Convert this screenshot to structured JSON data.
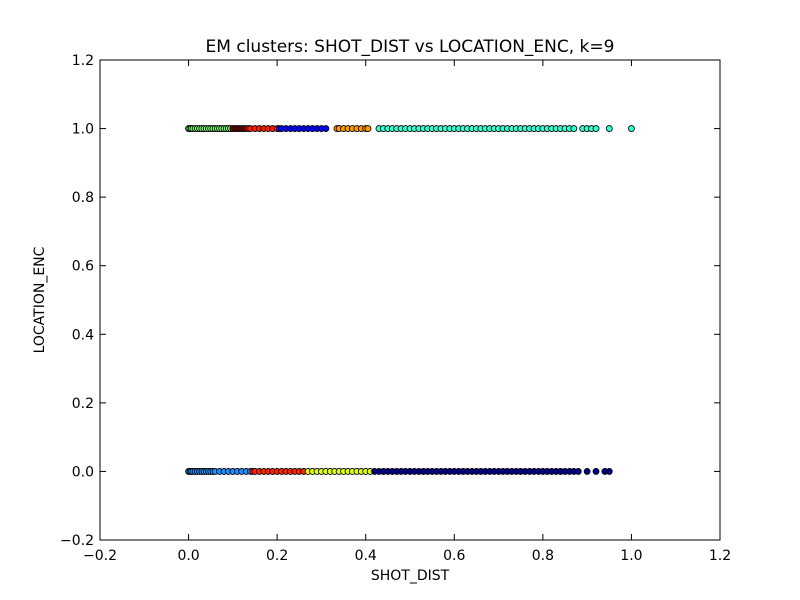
{
  "chart_data": {
    "type": "scatter",
    "title": "EM clusters: SHOT_DIST vs LOCATION_ENC, k=9",
    "xlabel": "SHOT_DIST",
    "ylabel": "LOCATION_ENC",
    "xlim": [
      -0.2,
      1.2
    ],
    "ylim": [
      -0.2,
      1.2
    ],
    "xticks": [
      "−0.2",
      "0.0",
      "0.2",
      "0.4",
      "0.6",
      "0.8",
      "1.0",
      "1.2"
    ],
    "yticks": [
      "−0.2",
      "0.0",
      "0.2",
      "0.4",
      "0.6",
      "0.8",
      "1.0",
      "1.2"
    ],
    "grid": false,
    "legend": "none",
    "marker_edge_color": "#000000",
    "series": [
      {
        "color": "#80ff77",
        "y": 1.0,
        "x": [
          0.0,
          0.003,
          0.006,
          0.01,
          0.015,
          0.02,
          0.025,
          0.03,
          0.035,
          0.04,
          0.045,
          0.05,
          0.055,
          0.06,
          0.065,
          0.07,
          0.075,
          0.08,
          0.085,
          0.09,
          0.095
        ]
      },
      {
        "color": "#800000",
        "y": 1.0,
        "x": [
          0.1,
          0.105,
          0.11,
          0.115,
          0.12,
          0.125,
          0.13
        ]
      },
      {
        "color": "#ff1a00",
        "y": 1.0,
        "x": [
          0.135,
          0.14,
          0.15,
          0.16,
          0.17,
          0.18,
          0.19,
          0.2
        ]
      },
      {
        "color": "#0000ff",
        "y": 1.0,
        "x": [
          0.205,
          0.21,
          0.22,
          0.23,
          0.24,
          0.25,
          0.26,
          0.27,
          0.28,
          0.29,
          0.3,
          0.31
        ]
      },
      {
        "color": "#ff9900",
        "y": 1.0,
        "x": [
          0.335,
          0.34,
          0.35,
          0.36,
          0.37,
          0.38,
          0.39,
          0.4,
          0.405
        ]
      },
      {
        "color": "#33ffd0",
        "y": 1.0,
        "x": [
          0.43,
          0.44,
          0.45,
          0.46,
          0.47,
          0.48,
          0.49,
          0.5,
          0.51,
          0.52,
          0.53,
          0.54,
          0.55,
          0.56,
          0.57,
          0.58,
          0.59,
          0.6,
          0.61,
          0.62,
          0.63,
          0.64,
          0.65,
          0.66,
          0.67,
          0.68,
          0.69,
          0.7,
          0.71,
          0.72,
          0.73,
          0.74,
          0.75,
          0.76,
          0.77,
          0.78,
          0.79,
          0.8,
          0.81,
          0.82,
          0.83,
          0.84,
          0.85,
          0.86,
          0.87,
          0.89,
          0.9,
          0.91,
          0.92,
          0.95,
          1.0
        ]
      },
      {
        "color": "#1e90ff",
        "y": 0.0,
        "x": [
          0.0,
          0.003,
          0.006,
          0.01,
          0.015,
          0.02,
          0.025,
          0.03,
          0.035,
          0.04,
          0.045,
          0.05,
          0.055,
          0.06,
          0.07,
          0.08,
          0.09,
          0.1,
          0.11,
          0.12,
          0.13,
          0.14
        ]
      },
      {
        "color": "#ff2200",
        "y": 0.0,
        "x": [
          0.145,
          0.15,
          0.16,
          0.17,
          0.18,
          0.19,
          0.2,
          0.21,
          0.22,
          0.23,
          0.24,
          0.25,
          0.26
        ]
      },
      {
        "color": "#e0ff1a",
        "y": 0.0,
        "x": [
          0.27,
          0.28,
          0.29,
          0.3,
          0.31,
          0.32,
          0.33,
          0.34,
          0.35,
          0.36,
          0.37,
          0.38,
          0.39,
          0.4,
          0.41
        ]
      },
      {
        "color": "#00008b",
        "y": 0.0,
        "x": [
          0.42,
          0.43,
          0.44,
          0.45,
          0.46,
          0.47,
          0.48,
          0.49,
          0.5,
          0.51,
          0.52,
          0.53,
          0.54,
          0.55,
          0.56,
          0.57,
          0.58,
          0.59,
          0.6,
          0.61,
          0.62,
          0.63,
          0.64,
          0.65,
          0.66,
          0.67,
          0.68,
          0.69,
          0.7,
          0.71,
          0.72,
          0.73,
          0.74,
          0.75,
          0.76,
          0.77,
          0.78,
          0.79,
          0.8,
          0.81,
          0.82,
          0.83,
          0.84,
          0.85,
          0.86,
          0.87,
          0.88,
          0.9,
          0.92,
          0.94,
          0.95
        ]
      }
    ]
  }
}
